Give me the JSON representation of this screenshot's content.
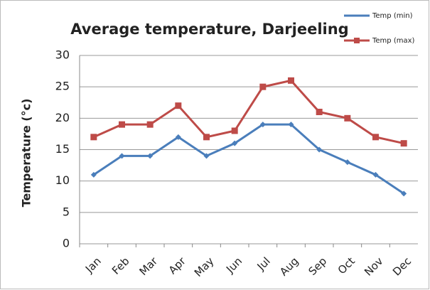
{
  "chart_data": {
    "type": "line",
    "title": "Average temperature, Darjeeling",
    "y_label": "Temperature (°c)",
    "categories": [
      "Jan",
      "Feb",
      "Mar",
      "Apr",
      "May",
      "Jun",
      "Jul",
      "Aug",
      "Sep",
      "Oct",
      "Nov",
      "Dec"
    ],
    "series": [
      {
        "name": "Temp (min)",
        "color": "#4a7ebb",
        "marker": "diamond",
        "values": [
          11,
          14,
          14,
          17,
          14,
          16,
          19,
          19,
          15,
          13,
          11,
          8
        ]
      },
      {
        "name": "Temp (max)",
        "color": "#be4b48",
        "marker": "square",
        "values": [
          17,
          19,
          19,
          22,
          17,
          18,
          25,
          26,
          21,
          20,
          17,
          16
        ]
      }
    ],
    "ylim": [
      0,
      30
    ],
    "yticks": [
      0,
      5,
      10,
      15,
      20,
      25,
      30
    ],
    "grid": true,
    "legend": "top-right"
  }
}
